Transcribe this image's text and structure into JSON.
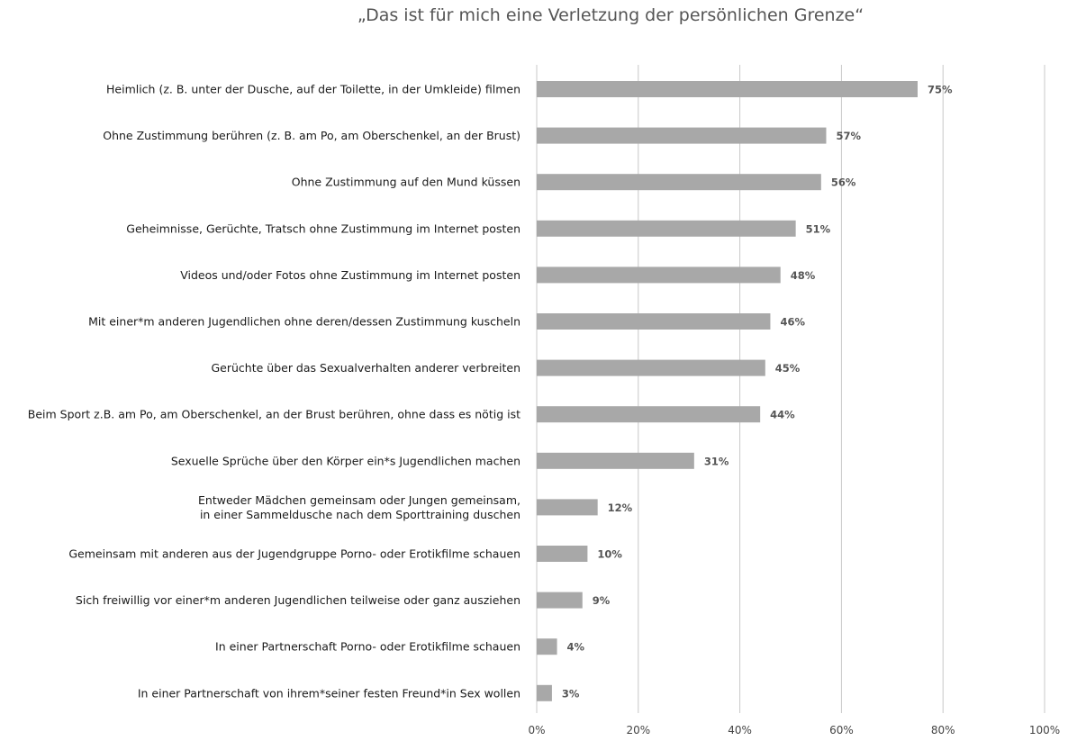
{
  "chart_data": {
    "type": "bar",
    "orientation": "horizontal",
    "title": "„Das ist für mich eine Verletzung der persönlichen Grenze“",
    "categories": [
      "Heimlich (z. B. unter der Dusche, auf der Toilette, in der Umkleide) filmen",
      "Ohne Zustimmung berühren (z. B. am Po, am Oberschenkel, an der Brust)",
      "Ohne Zustimmung auf den Mund küssen",
      "Geheimnisse, Gerüchte, Tratsch ohne Zustimmung im Internet posten",
      "Videos und/oder Fotos ohne Zustimmung im Internet posten",
      "Mit einer*m anderen Jugendlichen ohne deren/dessen Zustimmung kuscheln",
      "Gerüchte über das Sexualverhalten anderer verbreiten",
      "Beim Sport z.B. am Po, am Oberschenkel, an der Brust berühren, ohne dass es nötig ist",
      "Sexuelle Sprüche über den Körper ein*s Jugendlichen machen",
      [
        "Entweder Mädchen gemeinsam oder Jungen gemeinsam,",
        "in einer Sammeldusche nach dem Sporttraining duschen"
      ],
      "Gemeinsam mit anderen aus der Jugendgruppe Porno- oder Erotikfilme schauen",
      "Sich freiwillig vor einer*m anderen Jugendlichen teilweise oder ganz ausziehen",
      "In einer Partnerschaft Porno- oder Erotikfilme schauen",
      "In einer Partnerschaft von ihrem*seiner festen Freund*in Sex wollen"
    ],
    "values": [
      75,
      57,
      56,
      51,
      48,
      46,
      45,
      44,
      31,
      12,
      10,
      9,
      4,
      3
    ],
    "value_labels": [
      "75%",
      "57%",
      "56%",
      "51%",
      "48%",
      "46%",
      "45%",
      "44%",
      "31%",
      "12%",
      "10%",
      "9%",
      "4%",
      "3%"
    ],
    "xlim": [
      0,
      100
    ],
    "x_ticks": [
      0,
      20,
      40,
      60,
      80,
      100
    ],
    "x_tick_labels": [
      "0%",
      "20%",
      "40%",
      "60%",
      "80%",
      "100%"
    ],
    "grid": true,
    "bar_color": "#a8a8a8"
  }
}
